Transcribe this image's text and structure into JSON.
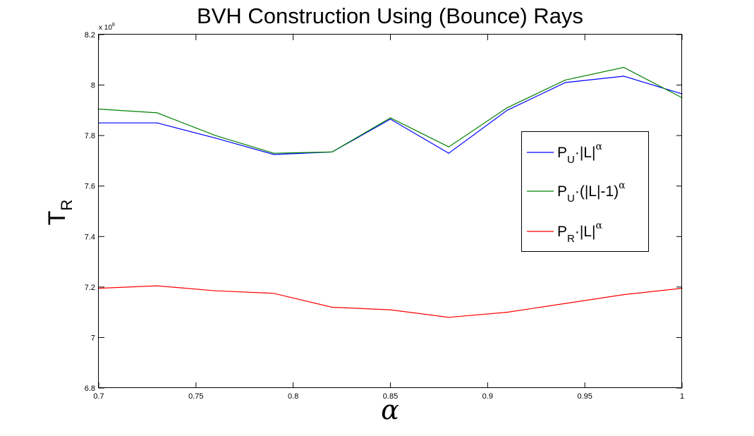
{
  "chart_data": {
    "type": "line",
    "title": "BVH Construction Using (Bounce) Rays",
    "xlabel": "α",
    "ylabel": {
      "main": "T",
      "sub": "R"
    },
    "y_multiplier": {
      "prefix": "x 10",
      "exponent": "8"
    },
    "xlim": [
      0.7,
      1.0
    ],
    "ylim": [
      6.8,
      8.2
    ],
    "xticks": [
      "0.7",
      "0.75",
      "0.8",
      "0.85",
      "0.9",
      "0.95",
      "1"
    ],
    "yticks": [
      "6.8",
      "7",
      "7.2",
      "7.4",
      "7.6",
      "7.8",
      "8",
      "8.2"
    ],
    "grid": false,
    "legend_position": "right",
    "x": [
      0.7,
      0.73,
      0.76,
      0.79,
      0.82,
      0.85,
      0.88,
      0.91,
      0.94,
      0.97,
      1.0
    ],
    "series": [
      {
        "name": "P_U·|L|^α",
        "label": {
          "base": "P",
          "sub": "U",
          "mid": "·|L|",
          "sup": "α"
        },
        "color": "#0000ff",
        "values": [
          7.85,
          7.85,
          7.79,
          7.725,
          7.735,
          7.865,
          7.73,
          7.9,
          8.01,
          8.035,
          7.965
        ]
      },
      {
        "name": "P_U·(|L|-1)^α",
        "label": {
          "base": "P",
          "sub": "U",
          "mid": "·(|L|-1)",
          "sup": "α"
        },
        "color": "#008000",
        "values": [
          7.905,
          7.89,
          7.8,
          7.73,
          7.735,
          7.87,
          7.755,
          7.91,
          8.02,
          8.07,
          7.95
        ]
      },
      {
        "name": "P_R·|L|^α",
        "label": {
          "base": "P",
          "sub": "R",
          "mid": "·|L|",
          "sup": "α"
        },
        "color": "#ff0000",
        "values": [
          7.195,
          7.205,
          7.185,
          7.175,
          7.12,
          7.11,
          7.08,
          7.1,
          7.135,
          7.17,
          7.195
        ]
      }
    ]
  }
}
